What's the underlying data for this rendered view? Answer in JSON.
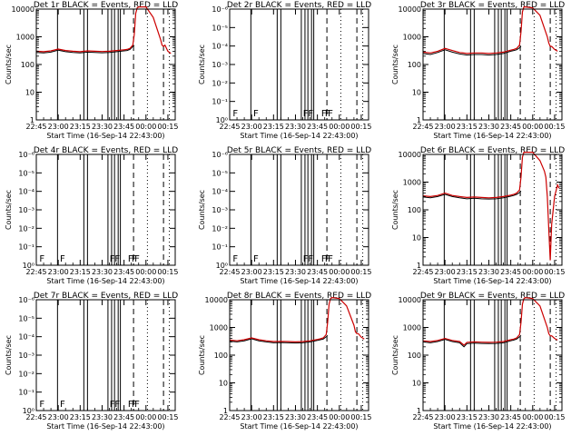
{
  "figure": {
    "background": "#ffffff",
    "axis_color": "#000000",
    "events_color": "#000000",
    "lld_color": "#cc0000"
  },
  "shared": {
    "x_tick_labels": [
      "22:45",
      "23:00",
      "23:15",
      "23:30",
      "23:45",
      "00:00",
      "00:15"
    ],
    "x_label": "Start Time (16-Sep-14 22:43:00)",
    "y_label": "Counts/sec",
    "x_range_minutes_after_22_45": [
      0,
      95
    ],
    "flag_letter": "F"
  },
  "chart_data": [
    {
      "type": "line",
      "title": "Det 1r BLACK = Events, RED = LLD",
      "y_scale": "log",
      "ylim": [
        1,
        10000
      ],
      "y_tick_labels": [
        "1",
        "10",
        "100",
        "1000",
        "10000"
      ],
      "solid_lines_min": [
        14.5,
        32.5,
        35.0,
        49.0,
        51.5,
        53.5,
        56.0,
        57.5
      ],
      "dashed_lines_min": [
        66.5,
        87.0
      ],
      "dotted_lines_min": [
        76.0,
        91.0
      ],
      "flags_min": [],
      "series": [
        {
          "color": "black",
          "x": [
            0,
            5,
            10,
            15,
            20,
            25,
            30,
            35,
            40,
            45,
            50,
            55,
            60,
            62,
            64,
            66,
            67
          ],
          "y": [
            270,
            260,
            280,
            330,
            290,
            270,
            260,
            280,
            270,
            265,
            270,
            290,
            310,
            320,
            350,
            450,
            500
          ]
        },
        {
          "color": "red",
          "x": [
            0,
            5,
            10,
            15,
            20,
            25,
            30,
            35,
            40,
            45,
            50,
            55,
            60,
            62,
            64,
            66,
            67,
            68,
            69,
            70,
            75,
            80,
            85,
            86,
            87,
            88,
            90,
            92
          ],
          "y": [
            300,
            290,
            310,
            360,
            320,
            300,
            290,
            310,
            300,
            295,
            300,
            320,
            340,
            350,
            380,
            500,
            1200,
            7000,
            11000,
            12000,
            12000,
            5000,
            800,
            500,
            450,
            500,
            300,
            250
          ]
        }
      ]
    },
    {
      "type": "line",
      "title": "Det 2r BLACK = Events, RED = LLD",
      "y_scale": "log",
      "ylim": [
        1,
        1e-06
      ],
      "y_tick_labels": [
        "10⁰",
        "10⁻¹",
        "10⁻²",
        "10⁻³",
        "10⁻⁴",
        "10⁻⁵",
        "10⁻⁶"
      ],
      "solid_lines_min": [
        14.5,
        32.5,
        35.0,
        49.0,
        51.5,
        53.5,
        56.0,
        57.5
      ],
      "dashed_lines_min": [
        66.5,
        87.0
      ],
      "dotted_lines_min": [
        76.0,
        91.0
      ],
      "flags_min": [
        1.5,
        15.5,
        49.5,
        53.0,
        62.0,
        64.5,
        66.5
      ],
      "series": []
    },
    {
      "type": "line",
      "title": "Det 3r BLACK = Events, RED = LLD",
      "y_scale": "log",
      "ylim": [
        1,
        10000
      ],
      "y_tick_labels": [
        "1",
        "10",
        "100",
        "1000",
        "10000"
      ],
      "solid_lines_min": [
        14.5,
        32.5,
        35.0,
        49.0,
        51.5,
        53.5,
        56.0,
        57.5
      ],
      "dashed_lines_min": [
        66.5,
        87.0
      ],
      "dotted_lines_min": [
        76.0,
        91.0
      ],
      "flags_min": [],
      "series": [
        {
          "color": "black",
          "x": [
            0,
            5,
            10,
            15,
            20,
            25,
            30,
            35,
            40,
            45,
            50,
            55,
            60,
            62,
            64,
            66,
            67
          ],
          "y": [
            250,
            230,
            270,
            340,
            280,
            240,
            220,
            230,
            230,
            220,
            230,
            250,
            300,
            320,
            340,
            400,
            450
          ]
        },
        {
          "color": "red",
          "x": [
            0,
            5,
            10,
            15,
            20,
            25,
            30,
            35,
            40,
            45,
            50,
            55,
            60,
            62,
            64,
            66,
            67,
            68,
            69,
            70,
            75,
            80,
            85,
            86,
            87,
            88,
            90,
            92
          ],
          "y": [
            280,
            260,
            300,
            380,
            320,
            270,
            250,
            260,
            260,
            250,
            260,
            280,
            330,
            350,
            380,
            500,
            1500,
            8000,
            12000,
            12000,
            11000,
            6000,
            1000,
            600,
            450,
            450,
            350,
            300
          ]
        }
      ]
    },
    {
      "type": "line",
      "title": "Det 4r BLACK = Events, RED = LLD",
      "y_scale": "log",
      "ylim": [
        1,
        1e-06
      ],
      "y_tick_labels": [
        "10⁰",
        "10⁻¹",
        "10⁻²",
        "10⁻³",
        "10⁻⁴",
        "10⁻⁵",
        "10⁻⁶"
      ],
      "solid_lines_min": [
        14.5,
        32.5,
        35.0,
        49.0,
        51.5,
        53.5,
        56.0,
        57.5
      ],
      "dashed_lines_min": [
        66.5,
        87.0
      ],
      "dotted_lines_min": [
        76.0,
        91.0
      ],
      "flags_min": [
        1.5,
        15.5,
        49.5,
        53.0,
        62.0,
        64.5,
        66.5
      ],
      "series": []
    },
    {
      "type": "line",
      "title": "Det 5r BLACK = Events, RED = LLD",
      "y_scale": "log",
      "ylim": [
        1,
        1e-06
      ],
      "y_tick_labels": [
        "10⁰",
        "10⁻¹",
        "10⁻²",
        "10⁻³",
        "10⁻⁴",
        "10⁻⁵",
        "10⁻⁶"
      ],
      "solid_lines_min": [
        14.5,
        32.5,
        35.0,
        49.0,
        51.5,
        53.5,
        56.0,
        57.5
      ],
      "dashed_lines_min": [
        66.5,
        87.0
      ],
      "dotted_lines_min": [
        76.0,
        91.0
      ],
      "flags_min": [
        1.5,
        15.5,
        49.5,
        53.0,
        62.0,
        64.5,
        66.5
      ],
      "series": []
    },
    {
      "type": "line",
      "title": "Det 6r BLACK = Events, RED = LLD",
      "y_scale": "log",
      "ylim": [
        1,
        10000
      ],
      "y_tick_labels": [
        "1",
        "10",
        "100",
        "1000",
        "10000"
      ],
      "solid_lines_min": [
        14.5,
        32.5,
        35.0,
        49.0,
        51.5,
        53.5,
        56.0,
        57.5
      ],
      "dashed_lines_min": [
        66.5,
        87.0
      ],
      "dotted_lines_min": [
        76.0,
        91.0
      ],
      "flags_min": [],
      "series": [
        {
          "color": "black",
          "x": [
            0,
            5,
            10,
            15,
            20,
            25,
            30,
            35,
            40,
            45,
            50,
            55,
            60,
            62,
            64,
            66,
            67
          ],
          "y": [
            290,
            270,
            300,
            360,
            300,
            270,
            250,
            260,
            250,
            245,
            250,
            270,
            310,
            330,
            360,
            420,
            480
          ]
        },
        {
          "color": "red",
          "x": [
            0,
            5,
            10,
            15,
            20,
            25,
            30,
            35,
            40,
            45,
            50,
            55,
            60,
            62,
            64,
            66,
            67,
            68,
            69,
            70,
            75,
            80,
            83,
            84,
            85,
            86,
            87,
            88,
            90,
            92,
            93
          ],
          "y": [
            320,
            300,
            330,
            400,
            330,
            300,
            280,
            290,
            280,
            270,
            280,
            300,
            340,
            360,
            400,
            520,
            1500,
            8000,
            12000,
            12000,
            12000,
            6000,
            2500,
            1500,
            300,
            20,
            1.5,
            30,
            300,
            800,
            600
          ]
        }
      ]
    },
    {
      "type": "line",
      "title": "Det 7r BLACK = Events, RED = LLD",
      "y_scale": "log",
      "ylim": [
        1,
        1e-06
      ],
      "y_tick_labels": [
        "10⁰",
        "10⁻¹",
        "10⁻²",
        "10⁻³",
        "10⁻⁴",
        "10⁻⁵",
        "10⁻⁶"
      ],
      "solid_lines_min": [
        14.5,
        32.5,
        35.0,
        49.0,
        51.5,
        53.5,
        56.0,
        57.5
      ],
      "dashed_lines_min": [
        66.5,
        87.0
      ],
      "dotted_lines_min": [
        76.0,
        91.0
      ],
      "flags_min": [
        1.5,
        15.5,
        49.5,
        53.0,
        62.0,
        64.5,
        66.5
      ],
      "series": []
    },
    {
      "type": "line",
      "title": "Det 8r BLACK = Events, RED = LLD",
      "y_scale": "log",
      "ylim": [
        1,
        10000
      ],
      "y_tick_labels": [
        "1",
        "10",
        "100",
        "1000",
        "10000"
      ],
      "solid_lines_min": [
        14.5,
        32.5,
        35.0,
        49.0,
        51.5,
        53.5,
        56.0,
        57.5
      ],
      "dashed_lines_min": [
        66.5,
        87.0
      ],
      "dotted_lines_min": [
        76.0,
        91.0
      ],
      "flags_min": [],
      "series": [
        {
          "color": "black",
          "x": [
            0,
            5,
            10,
            15,
            20,
            25,
            30,
            35,
            40,
            45,
            50,
            55,
            60,
            62,
            64,
            66,
            67
          ],
          "y": [
            320,
            300,
            330,
            390,
            330,
            300,
            280,
            285,
            280,
            275,
            280,
            300,
            340,
            360,
            380,
            460,
            520
          ]
        },
        {
          "color": "red",
          "x": [
            0,
            5,
            10,
            15,
            20,
            25,
            30,
            35,
            40,
            45,
            50,
            55,
            60,
            62,
            64,
            66,
            67,
            68,
            69,
            70,
            75,
            80,
            85,
            86,
            87,
            88,
            90,
            92
          ],
          "y": [
            350,
            330,
            360,
            420,
            360,
            330,
            310,
            315,
            310,
            300,
            310,
            330,
            370,
            390,
            420,
            550,
            1500,
            7000,
            11000,
            12000,
            11000,
            6000,
            1200,
            700,
            600,
            600,
            450,
            380
          ]
        }
      ]
    },
    {
      "type": "line",
      "title": "Det 9r BLACK = Events, RED = LLD",
      "y_scale": "log",
      "ylim": [
        1,
        10000
      ],
      "y_tick_labels": [
        "1",
        "10",
        "100",
        "1000",
        "10000"
      ],
      "solid_lines_min": [
        14.5,
        32.5,
        35.0,
        49.0,
        51.5,
        53.5,
        56.0,
        57.5
      ],
      "dashed_lines_min": [
        66.5,
        87.0
      ],
      "dotted_lines_min": [
        76.0,
        91.0
      ],
      "flags_min": [],
      "series": [
        {
          "color": "black",
          "x": [
            0,
            5,
            10,
            15,
            20,
            25,
            28,
            30,
            35,
            40,
            45,
            50,
            55,
            60,
            62,
            64,
            66,
            67
          ],
          "y": [
            300,
            280,
            310,
            370,
            310,
            280,
            200,
            260,
            270,
            265,
            260,
            265,
            280,
            330,
            350,
            380,
            460,
            520
          ]
        },
        {
          "color": "red",
          "x": [
            0,
            5,
            10,
            15,
            20,
            25,
            28,
            30,
            35,
            40,
            45,
            50,
            55,
            60,
            62,
            64,
            66,
            67,
            68,
            69,
            70,
            75,
            80,
            85,
            86,
            87,
            88,
            90,
            92
          ],
          "y": [
            330,
            310,
            340,
            400,
            340,
            310,
            230,
            290,
            300,
            295,
            290,
            295,
            310,
            360,
            380,
            420,
            550,
            1500,
            7000,
            11000,
            12000,
            11000,
            6000,
            1000,
            600,
            500,
            500,
            400,
            350
          ]
        }
      ]
    }
  ]
}
